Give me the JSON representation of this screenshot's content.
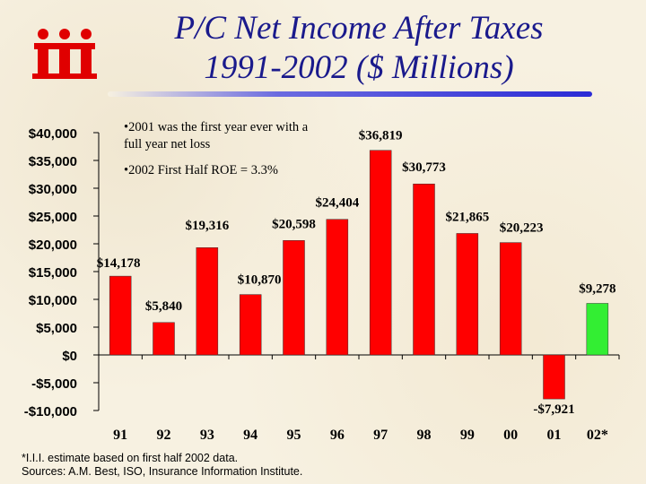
{
  "title_line1": "P/C Net Income After Taxes",
  "title_line2": "1991-2002 ($ Millions)",
  "logo_text": "iii",
  "annotations": {
    "note1": "•2001 was the first year ever with a full year net loss",
    "note2": "•2002 First Half ROE = 3.3%"
  },
  "footnotes": {
    "line1": "*I.I.I. estimate based on first half 2002 data.",
    "line2": "Sources: A.M. Best, ISO, Insurance Information Institute."
  },
  "colors": {
    "bar_default": "#ff0000",
    "bar_estimate": "#33ee33",
    "title": "#1a1a8c",
    "rule": "#2b2bd6"
  },
  "chart_data": {
    "type": "bar",
    "categories": [
      "91",
      "92",
      "93",
      "94",
      "95",
      "96",
      "97",
      "98",
      "99",
      "00",
      "01",
      "02*"
    ],
    "values": [
      14178,
      5840,
      19316,
      10870,
      20598,
      24404,
      36819,
      30773,
      21865,
      20223,
      -7921,
      9278
    ],
    "data_labels": [
      "$14,178",
      "$5,840",
      "$19,316",
      "$10,870",
      "$20,598",
      "$24,404",
      "$36,819",
      "$30,773",
      "$21,865",
      "$20,223",
      "-$7,921",
      "$9,278"
    ],
    "y_ticks": [
      40000,
      35000,
      30000,
      25000,
      20000,
      15000,
      10000,
      5000,
      0,
      -5000,
      -10000
    ],
    "y_tick_labels": [
      "$40,000",
      "$35,000",
      "$30,000",
      "$25,000",
      "$20,000",
      "$15,000",
      "$10,000",
      "$5,000",
      "$0",
      "-$5,000",
      "-$10,000"
    ],
    "ylim": [
      -10000,
      40000
    ],
    "highlight_category": "02*",
    "grid": false,
    "legend": "none"
  }
}
